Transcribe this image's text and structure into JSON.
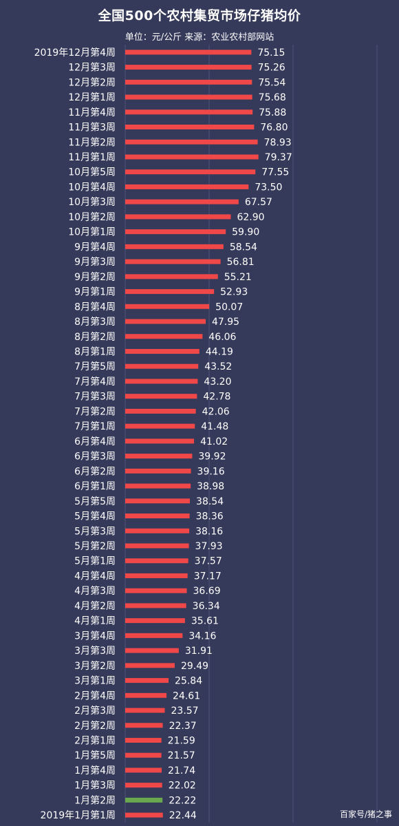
{
  "chart_data": {
    "type": "bar",
    "orientation": "horizontal",
    "title": "全国500个农村集贸市场仔猪均价",
    "subtitle": "单位：元/公斤  来源：农业农村部网站",
    "credit": "百家号/猪之事",
    "xlim": [
      0,
      150
    ],
    "grid": true,
    "bar_color": "#f04848",
    "highlight_color": "#6aa84f",
    "highlight_index": 50,
    "categories": [
      "2019年12月第4周",
      "12月第3周",
      "12月第2周",
      "12月第1周",
      "11月第4周",
      "11月第3周",
      "11月第2周",
      "11月第1周",
      "10月第5周",
      "10月第4周",
      "10月第3周",
      "10月第2周",
      "10月第1周",
      "9月第4周",
      "9月第3周",
      "9月第2周",
      "9月第1周",
      "8月第4周",
      "8月第3周",
      "8月第2周",
      "8月第1周",
      "7月第5周",
      "7月第4周",
      "7月第3周",
      "7月第2周",
      "7月第1周",
      "6月第4周",
      "6月第3周",
      "6月第2周",
      "6月第1周",
      "5月第5周",
      "5月第4周",
      "5月第3周",
      "5月第2周",
      "5月第1周",
      "4月第4周",
      "4月第3周",
      "4月第2周",
      "4月第1周",
      "3月第4周",
      "3月第3周",
      "3月第2周",
      "3月第1周",
      "2月第4周",
      "2月第3周",
      "2月第2周",
      "2月第1周",
      "1月第5周",
      "1月第4周",
      "1月第3周",
      "1月第2周",
      "2019年1月第1周"
    ],
    "values": [
      75.15,
      75.26,
      75.54,
      75.68,
      75.88,
      76.8,
      78.93,
      79.37,
      77.55,
      73.5,
      67.57,
      62.9,
      59.9,
      58.54,
      56.81,
      55.21,
      52.93,
      50.07,
      47.95,
      46.06,
      44.19,
      43.52,
      43.2,
      42.78,
      42.06,
      41.48,
      41.02,
      39.92,
      39.16,
      38.98,
      38.54,
      38.36,
      38.16,
      37.93,
      37.57,
      37.17,
      36.69,
      36.34,
      35.61,
      34.16,
      31.91,
      29.49,
      25.84,
      24.61,
      23.57,
      22.37,
      21.59,
      21.57,
      21.74,
      22.02,
      22.22,
      22.44
    ],
    "value_labels": [
      "75.15",
      "75.26",
      "75.54",
      "75.68",
      "75.88",
      "76.80",
      "78.93",
      "79.37",
      "77.55",
      "73.50",
      "67.57",
      "62.90",
      "59.90",
      "58.54",
      "56.81",
      "55.21",
      "52.93",
      "50.07",
      "47.95",
      "46.06",
      "44.19",
      "43.52",
      "43.20",
      "42.78",
      "42.06",
      "41.48",
      "41.02",
      "39.92",
      "39.16",
      "38.98",
      "38.54",
      "38.36",
      "38.16",
      "37.93",
      "37.57",
      "37.17",
      "36.69",
      "36.34",
      "35.61",
      "34.16",
      "31.91",
      "29.49",
      "25.84",
      "24.61",
      "23.57",
      "22.37",
      "21.59",
      "21.57",
      "21.74",
      "22.02",
      "22.22",
      "22.44"
    ]
  }
}
